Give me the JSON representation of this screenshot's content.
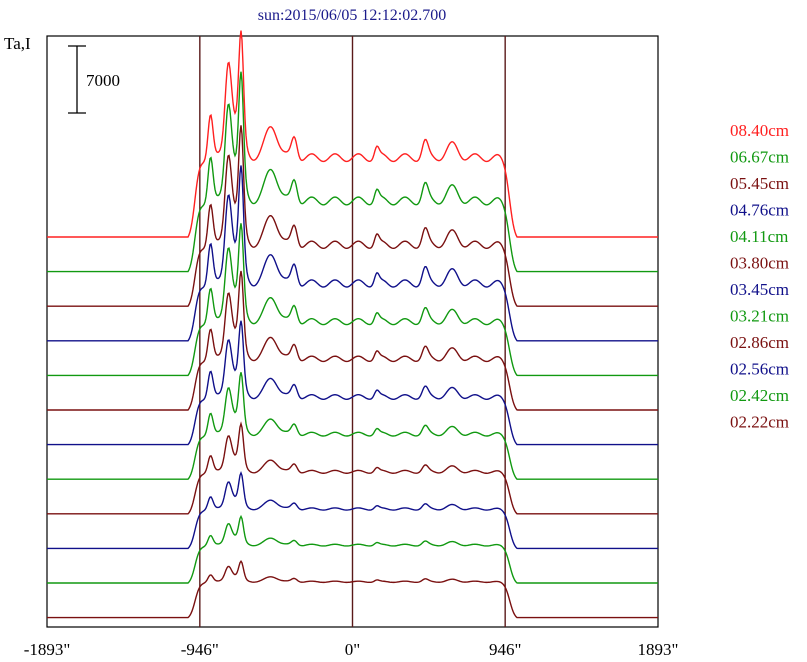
{
  "chart_data": {
    "type": "line",
    "title": "sun:2015/06/05 12:12:02.700",
    "ylabel": "Ta,I",
    "scale_bar_label": "7000",
    "scale_bar_value": 7000,
    "xlim": [
      -1893,
      1893
    ],
    "x_ticks": [
      {
        "value": -1893,
        "label": "-1893\""
      },
      {
        "value": -946,
        "label": "-946\""
      },
      {
        "value": 0,
        "label": "0\""
      },
      {
        "value": 946,
        "label": "946\""
      },
      {
        "value": 1893,
        "label": "1893\""
      }
    ],
    "vertical_lines": [
      -946,
      0,
      946
    ],
    "series": [
      {
        "name": "08.40cm",
        "color": "#ff2020",
        "amp": 1.55,
        "fine": 0.7
      },
      {
        "name": "06.67cm",
        "color": "#119911",
        "amp": 1.38,
        "fine": 0.8
      },
      {
        "name": "05.45cm",
        "color": "#7a1010",
        "amp": 1.2,
        "fine": 0.85
      },
      {
        "name": "04.76cm",
        "color": "#10108a",
        "amp": 1.12,
        "fine": 0.9
      },
      {
        "name": "04.11cm",
        "color": "#119911",
        "amp": 1.05,
        "fine": 0.8
      },
      {
        "name": "03.80cm",
        "color": "#7a1010",
        "amp": 1.0,
        "fine": 0.75
      },
      {
        "name": "03.45cm",
        "color": "#10108a",
        "amp": 0.93,
        "fine": 0.7
      },
      {
        "name": "03.21cm",
        "color": "#119911",
        "amp": 0.88,
        "fine": 0.6
      },
      {
        "name": "02.86cm",
        "color": "#7a1010",
        "amp": 0.82,
        "fine": 0.5
      },
      {
        "name": "02.56cm",
        "color": "#10108a",
        "amp": 0.77,
        "fine": 0.4
      },
      {
        "name": "02.42cm",
        "color": "#119911",
        "amp": 0.74,
        "fine": 0.33
      },
      {
        "name": "02.22cm",
        "color": "#7a1010",
        "amp": 0.7,
        "fine": 0.25
      }
    ]
  }
}
